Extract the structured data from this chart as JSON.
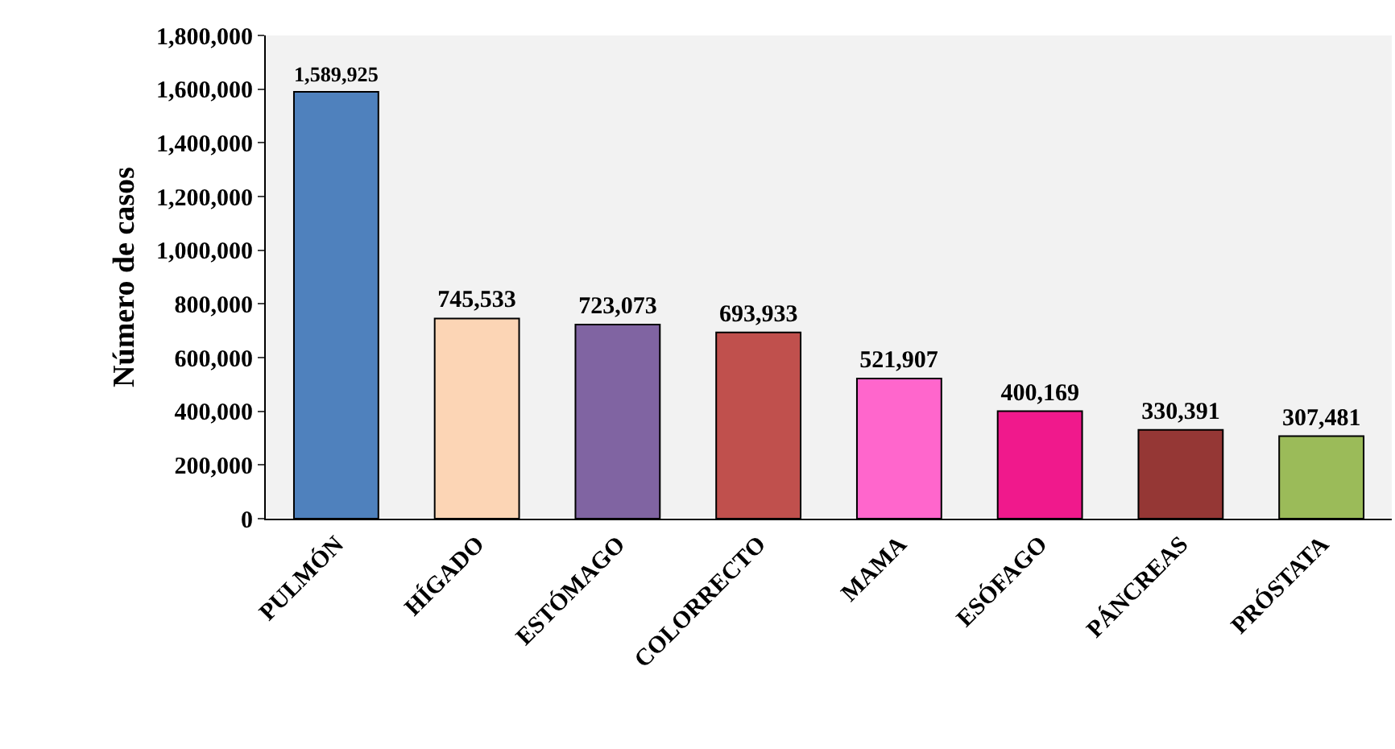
{
  "chart_data": {
    "type": "bar",
    "ylabel": "Número de casos",
    "categories": [
      "PULMÓN",
      "HÍGADO",
      "ESTÓMAGO",
      "COLORRECTO",
      "MAMA",
      "ESÓFAGO",
      "PÁNCREAS",
      "PRÓSTATA"
    ],
    "values": [
      1589925,
      745533,
      723073,
      693933,
      521907,
      400169,
      330391,
      307481
    ],
    "colors": [
      "#4f81bd",
      "#fcd5b5",
      "#8064a2",
      "#c0504d",
      "#ff66cc",
      "#f0198c",
      "#953735",
      "#9bbb59"
    ],
    "ylim": [
      0,
      1800000
    ],
    "yticks": [
      {
        "value": 0,
        "label": "0"
      },
      {
        "value": 200000,
        "label": "200,000"
      },
      {
        "value": 400000,
        "label": "400,000"
      },
      {
        "value": 600000,
        "label": "600,000"
      },
      {
        "value": 800000,
        "label": "800,000"
      },
      {
        "value": 1000000,
        "label": "1,000,000"
      },
      {
        "value": 1200000,
        "label": "1,200,000"
      },
      {
        "value": 1400000,
        "label": "1,400,000"
      },
      {
        "value": 1600000,
        "label": "1,600,000"
      },
      {
        "value": 1800000,
        "label": "1,800,000"
      }
    ],
    "value_labels": [
      "1,589,925",
      "745,533",
      "723,073",
      "693,933",
      "521,907",
      "400,169",
      "330,391",
      "307,481"
    ],
    "grid": false,
    "legend": false
  }
}
